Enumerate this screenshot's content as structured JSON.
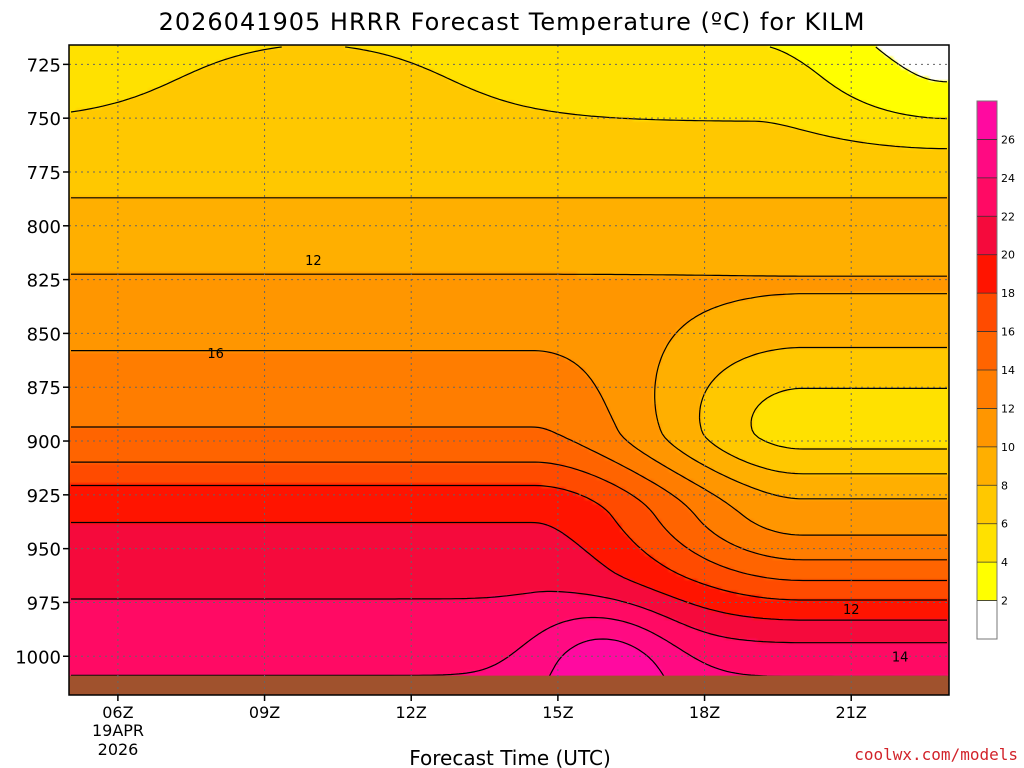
{
  "chart_data": {
    "type": "heatmap",
    "title": "2026041905 HRRR Forecast Temperature (ºC) for KILM",
    "xlabel": "Forecast Time (UTC)",
    "ylabel": "",
    "x_ticks": [
      {
        "label": "06Z",
        "hour": 6
      },
      {
        "label": "09Z",
        "hour": 9
      },
      {
        "label": "12Z",
        "hour": 12
      },
      {
        "label": "15Z",
        "hour": 15
      },
      {
        "label": "18Z",
        "hour": 18
      },
      {
        "label": "21Z",
        "hour": 21
      }
    ],
    "date_label_line1": "19APR",
    "date_label_line2": "2026",
    "xlim": [
      5,
      23
    ],
    "y_ticks": [
      725,
      750,
      775,
      800,
      825,
      850,
      875,
      900,
      925,
      950,
      975,
      1000
    ],
    "ylim": [
      1018,
      716
    ],
    "grid": true,
    "contour_labels": [
      {
        "text": "12",
        "hour": 10,
        "pressure": 816
      },
      {
        "text": "16",
        "hour": 8,
        "pressure": 859
      },
      {
        "text": "12",
        "hour": 21,
        "pressure": 978
      },
      {
        "text": "14",
        "hour": 22,
        "pressure": 1000
      }
    ],
    "colorbar": {
      "ticks": [
        2,
        4,
        6,
        8,
        10,
        12,
        14,
        16,
        18,
        20,
        22,
        24,
        26
      ],
      "bands": [
        {
          "from": 0,
          "to": 2,
          "color": "#ffffff"
        },
        {
          "from": 2,
          "to": 4,
          "color": "#ffff00"
        },
        {
          "from": 4,
          "to": 6,
          "color": "#ffe100"
        },
        {
          "from": 6,
          "to": 8,
          "color": "#ffc800"
        },
        {
          "from": 8,
          "to": 10,
          "color": "#ffaf00"
        },
        {
          "from": 10,
          "to": 12,
          "color": "#ff9600"
        },
        {
          "from": 12,
          "to": 14,
          "color": "#ff7d00"
        },
        {
          "from": 14,
          "to": 16,
          "color": "#ff6400"
        },
        {
          "from": 16,
          "to": 18,
          "color": "#ff4b00"
        },
        {
          "from": 18,
          "to": 20,
          "color": "#ff1400"
        },
        {
          "from": 20,
          "to": 22,
          "color": "#f50a3c"
        },
        {
          "from": 22,
          "to": 24,
          "color": "#ff0a64"
        },
        {
          "from": 24,
          "to": 26,
          "color": "#ff0a82"
        },
        {
          "from": 26,
          "to": 28,
          "color": "#ff0aa0"
        }
      ]
    },
    "temperature_field_source": "approximate reconstruction of contoured field"
  },
  "credit": "coolwx.com/models",
  "colors": {
    "ground": "#a0522d",
    "contour": "#000000",
    "credit": "#d2232a"
  }
}
